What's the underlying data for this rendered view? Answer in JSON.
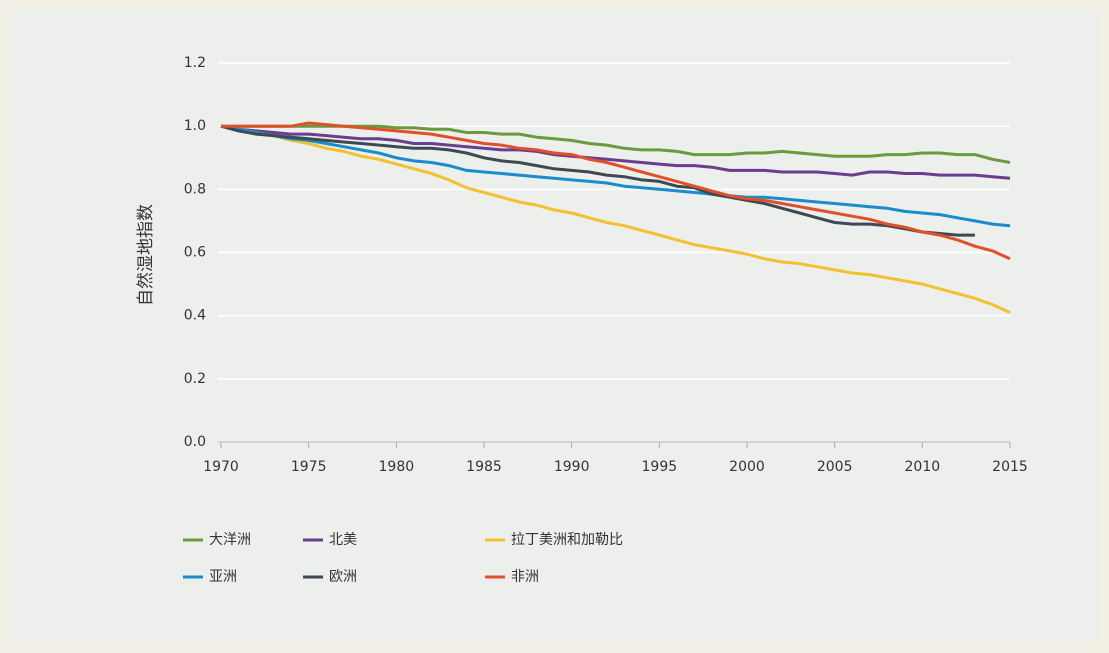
{
  "chart_data": {
    "type": "line",
    "ylabel": "自然湿地指数",
    "x": [
      1970,
      1971,
      1972,
      1973,
      1974,
      1975,
      1976,
      1977,
      1978,
      1979,
      1980,
      1981,
      1982,
      1983,
      1984,
      1985,
      1986,
      1987,
      1988,
      1989,
      1990,
      1991,
      1992,
      1993,
      1994,
      1995,
      1996,
      1997,
      1998,
      1999,
      2000,
      2001,
      2002,
      2003,
      2004,
      2005,
      2006,
      2007,
      2008,
      2009,
      2010,
      2011,
      2012,
      2013,
      2014,
      2015
    ],
    "xlim": [
      1970,
      2015
    ],
    "xticks": [
      1970,
      1975,
      1980,
      1985,
      1990,
      1995,
      2000,
      2005,
      2010,
      2015
    ],
    "ylim": [
      0,
      1.2
    ],
    "yticks": [
      {
        "value": 0,
        "label": "0.0"
      },
      0.2,
      0.4,
      0.6,
      0.8,
      {
        "value": 1,
        "label": "1.0"
      },
      1.2
    ],
    "grid": true,
    "series": [
      {
        "name": "大洋洲",
        "color": "#6a9a3e",
        "values": [
          1.0,
          1.0,
          1.0,
          1.0,
          1.0,
          1.0,
          1.0,
          1.0,
          1.0,
          1.0,
          0.995,
          0.995,
          0.99,
          0.99,
          0.98,
          0.98,
          0.975,
          0.975,
          0.965,
          0.96,
          0.955,
          0.945,
          0.94,
          0.93,
          0.925,
          0.925,
          0.92,
          0.91,
          0.91,
          0.91,
          0.915,
          0.915,
          0.92,
          0.915,
          0.91,
          0.905,
          0.905,
          0.905,
          0.91,
          0.91,
          0.915,
          0.915,
          0.91,
          0.91,
          0.895,
          0.885
        ]
      },
      {
        "name": "北美",
        "color": "#6b3d8f",
        "values": [
          1.0,
          0.99,
          0.985,
          0.98,
          0.975,
          0.975,
          0.97,
          0.965,
          0.96,
          0.96,
          0.955,
          0.945,
          0.945,
          0.94,
          0.935,
          0.93,
          0.925,
          0.925,
          0.92,
          0.91,
          0.905,
          0.9,
          0.895,
          0.89,
          0.885,
          0.88,
          0.875,
          0.875,
          0.87,
          0.86,
          0.86,
          0.86,
          0.855,
          0.855,
          0.855,
          0.85,
          0.845,
          0.855,
          0.855,
          0.85,
          0.85,
          0.845,
          0.845,
          0.845,
          0.84,
          0.835
        ]
      },
      {
        "name": "拉丁美洲和加勒比",
        "color": "#f2c12e",
        "values": [
          1.0,
          0.99,
          0.98,
          0.97,
          0.955,
          0.945,
          0.93,
          0.92,
          0.905,
          0.895,
          0.88,
          0.865,
          0.85,
          0.83,
          0.805,
          0.79,
          0.775,
          0.76,
          0.75,
          0.735,
          0.725,
          0.71,
          0.695,
          0.685,
          0.67,
          0.655,
          0.64,
          0.625,
          0.615,
          0.605,
          0.595,
          0.58,
          0.57,
          0.565,
          0.555,
          0.545,
          0.535,
          0.53,
          0.52,
          0.51,
          0.5,
          0.485,
          0.47,
          0.455,
          0.435,
          0.41
        ]
      },
      {
        "name": "亚洲",
        "color": "#1a8ccc",
        "values": [
          1.0,
          0.99,
          0.98,
          0.97,
          0.96,
          0.955,
          0.945,
          0.935,
          0.925,
          0.915,
          0.9,
          0.89,
          0.885,
          0.875,
          0.86,
          0.855,
          0.85,
          0.845,
          0.84,
          0.835,
          0.83,
          0.825,
          0.82,
          0.81,
          0.805,
          0.8,
          0.795,
          0.79,
          0.785,
          0.78,
          0.775,
          0.775,
          0.77,
          0.765,
          0.76,
          0.755,
          0.75,
          0.745,
          0.74,
          0.73,
          0.725,
          0.72,
          0.71,
          0.7,
          0.69,
          0.685
        ]
      },
      {
        "name": "欧洲",
        "color": "#3d4a52",
        "values": [
          1.0,
          0.985,
          0.975,
          0.97,
          0.965,
          0.96,
          0.955,
          0.95,
          0.945,
          0.94,
          0.935,
          0.93,
          0.93,
          0.925,
          0.915,
          0.9,
          0.89,
          0.885,
          0.875,
          0.865,
          0.86,
          0.855,
          0.845,
          0.84,
          0.83,
          0.825,
          0.81,
          0.805,
          0.785,
          0.775,
          0.765,
          0.755,
          0.74,
          0.725,
          0.71,
          0.695,
          0.69,
          0.69,
          0.685,
          0.675,
          0.665,
          0.66,
          0.655,
          0.655,
          null,
          null
        ]
      },
      {
        "name": "非洲",
        "color": "#e0502b",
        "values": [
          1.0,
          1.0,
          1.0,
          1.0,
          1.0,
          1.01,
          1.005,
          1.0,
          0.995,
          0.99,
          0.985,
          0.98,
          0.975,
          0.965,
          0.955,
          0.945,
          0.94,
          0.93,
          0.925,
          0.915,
          0.91,
          0.895,
          0.885,
          0.87,
          0.855,
          0.84,
          0.825,
          0.81,
          0.795,
          0.78,
          0.77,
          0.765,
          0.755,
          0.745,
          0.735,
          0.725,
          0.715,
          0.705,
          0.69,
          0.68,
          0.665,
          0.655,
          0.64,
          0.62,
          0.605,
          0.58
        ]
      }
    ]
  }
}
